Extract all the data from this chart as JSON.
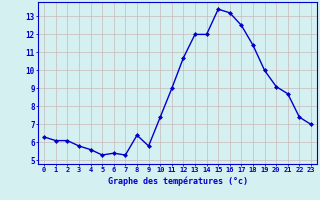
{
  "hours": [
    0,
    1,
    2,
    3,
    4,
    5,
    6,
    7,
    8,
    9,
    10,
    11,
    12,
    13,
    14,
    15,
    16,
    17,
    18,
    19,
    20,
    21,
    22,
    23
  ],
  "temperatures": [
    6.3,
    6.1,
    6.1,
    5.8,
    5.6,
    5.3,
    5.4,
    5.3,
    6.4,
    5.8,
    7.4,
    9.0,
    10.7,
    12.0,
    12.0,
    13.4,
    13.2,
    12.5,
    11.4,
    10.0,
    9.1,
    8.7,
    7.4,
    7.0
  ],
  "line_color": "#0000cc",
  "marker": "D",
  "marker_size": 2.0,
  "bg_color": "#d5f0f0",
  "grid_color": "#c8b8b8",
  "xlabel": "Graphe des températures (°c)",
  "xlabel_color": "#0000cc",
  "tick_color": "#0000cc",
  "ylim": [
    4.8,
    13.8
  ],
  "xlim": [
    -0.5,
    23.5
  ],
  "yticks": [
    5,
    6,
    7,
    8,
    9,
    10,
    11,
    12,
    13
  ],
  "figsize": [
    3.2,
    2.0
  ],
  "dpi": 100
}
